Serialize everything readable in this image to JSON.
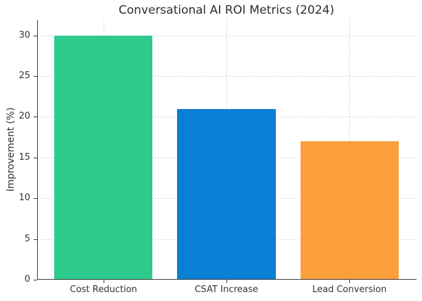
{
  "title": "Conversational AI ROI Metrics (2024)",
  "chart_data": {
    "type": "bar",
    "title": "Conversational AI ROI Metrics (2024)",
    "categories": [
      "Cost Reduction",
      "CSAT Increase",
      "Lead Conversion"
    ],
    "values": [
      30,
      21,
      17
    ],
    "bar_colors": [
      "#2ecb8f",
      "#0a80d4",
      "#fb9e3c"
    ],
    "xlabel": "",
    "ylabel": "Improvement (%)",
    "ylim": [
      0,
      31.9
    ],
    "yticks": [
      0,
      5,
      10,
      15,
      20,
      25,
      30
    ],
    "grid": true,
    "grid_axes": "both",
    "grid_style": "dashed",
    "legend": "none",
    "bar_width_fraction": 0.8,
    "colors": {
      "background": "#ffffff",
      "grid": "#dcdcdc",
      "spine": "#3c3c3c",
      "text": "#333333",
      "title_text": "#2e2e2e"
    }
  }
}
